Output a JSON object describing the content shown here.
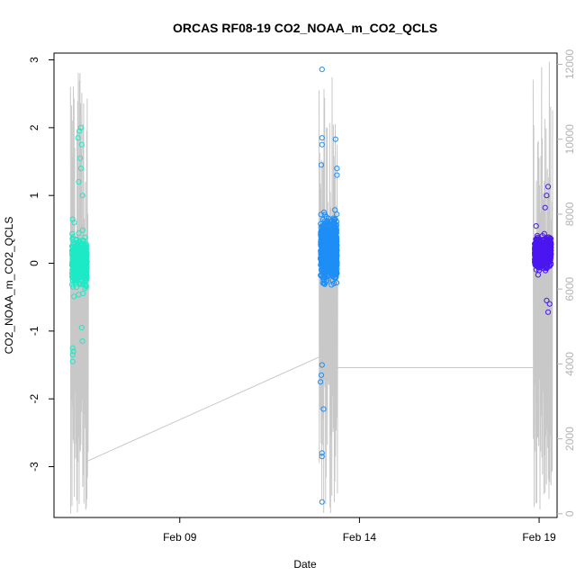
{
  "chart_data": {
    "type": "scatter",
    "title": "ORCAS RF08-19 CO2_NOAA_m_CO2_QCLS",
    "xlabel": "Date",
    "ylabel": "CO2_NOAA_m_CO2_QCLS",
    "x_axis": {
      "type": "date",
      "range": [
        "2016-02-05T12:00",
        "2016-02-19T12:00"
      ],
      "ticks": [
        {
          "value": "2016-02-09",
          "label": "Feb 09"
        },
        {
          "value": "2016-02-14",
          "label": "Feb 14"
        },
        {
          "value": "2016-02-19",
          "label": "Feb 19"
        }
      ]
    },
    "y_axis": {
      "range": [
        -3.75,
        3.1
      ],
      "ticks": [
        -3,
        -2,
        -1,
        0,
        1,
        2,
        3
      ]
    },
    "y2_axis": {
      "range": [
        -100,
        12300
      ],
      "ticks": [
        0,
        2000,
        4000,
        6000,
        8000,
        10000,
        12000
      ],
      "color": "#b3b3b3"
    },
    "series": [
      {
        "color": "#1de9c5",
        "x_range": [
          "2016-02-06T00:00",
          "2016-02-06T10:00"
        ],
        "center": 0.0,
        "spread": 0.3,
        "n": 420,
        "outliers": [
          {
            "x": "2016-02-06T06:00",
            "y": 2.0
          },
          {
            "x": "2016-02-06T05:00",
            "y": 1.95
          },
          {
            "x": "2016-02-06T04:00",
            "y": 1.85
          },
          {
            "x": "2016-02-06T06:30",
            "y": 1.75
          },
          {
            "x": "2016-02-06T05:30",
            "y": 1.55
          },
          {
            "x": "2016-02-06T06:00",
            "y": 1.4
          },
          {
            "x": "2016-02-06T04:30",
            "y": 1.2
          },
          {
            "x": "2016-02-06T07:00",
            "y": 1.0
          },
          {
            "x": "2016-02-06T00:30",
            "y": 0.65
          },
          {
            "x": "2016-02-06T01:30",
            "y": 0.6
          },
          {
            "x": "2016-02-06T00:30",
            "y": -1.25
          },
          {
            "x": "2016-02-06T01:00",
            "y": -1.3
          },
          {
            "x": "2016-02-06T00:30",
            "y": -1.35
          },
          {
            "x": "2016-02-06T00:30",
            "y": -1.45
          },
          {
            "x": "2016-02-06T07:00",
            "y": -1.15
          },
          {
            "x": "2016-02-06T06:30",
            "y": -0.95
          }
        ]
      },
      {
        "color": "#1e8ef5",
        "x_range": [
          "2016-02-12T22:00",
          "2016-02-13T09:00"
        ],
        "center": 0.2,
        "spread": 0.35,
        "n": 900,
        "outliers": [
          {
            "x": "2016-02-12T23:00",
            "y": 2.86
          },
          {
            "x": "2016-02-12T23:00",
            "y": 1.85
          },
          {
            "x": "2016-02-13T08:00",
            "y": 1.83
          },
          {
            "x": "2016-02-12T23:00",
            "y": 1.75
          },
          {
            "x": "2016-02-12T22:30",
            "y": 1.45
          },
          {
            "x": "2016-02-13T09:00",
            "y": 1.4
          },
          {
            "x": "2016-02-13T09:00",
            "y": 1.3
          },
          {
            "x": "2016-02-12T23:00",
            "y": -1.5
          },
          {
            "x": "2016-02-12T22:30",
            "y": -1.65
          },
          {
            "x": "2016-02-12T22:00",
            "y": -1.75
          },
          {
            "x": "2016-02-13T00:00",
            "y": -2.15
          },
          {
            "x": "2016-02-12T23:00",
            "y": -2.8
          },
          {
            "x": "2016-02-12T23:00",
            "y": -2.85
          },
          {
            "x": "2016-02-12T23:00",
            "y": -3.52
          }
        ]
      },
      {
        "color": "#4a16f0",
        "x_range": [
          "2016-02-18T21:00",
          "2016-02-19T08:00"
        ],
        "center": 0.15,
        "spread": 0.18,
        "n": 650,
        "outliers": [
          {
            "x": "2016-02-19T06:00",
            "y": 1.13
          },
          {
            "x": "2016-02-19T05:00",
            "y": 1.0
          },
          {
            "x": "2016-02-19T04:00",
            "y": 0.82
          },
          {
            "x": "2016-02-18T22:00",
            "y": 0.55
          },
          {
            "x": "2016-02-19T05:00",
            "y": -0.55
          },
          {
            "x": "2016-02-19T07:00",
            "y": -0.6
          },
          {
            "x": "2016-02-19T06:00",
            "y": -0.72
          }
        ]
      }
    ],
    "altitude_trace": {
      "color": "#c8c8c8",
      "axis": "y2",
      "connectors": [
        {
          "x": "2016-02-06T10:00",
          "y": 1400
        },
        {
          "x": "2016-02-12T22:00",
          "y": 4200
        },
        {
          "x": "2016-02-13T09:00",
          "y": 3900
        },
        {
          "x": "2016-02-18T21:00",
          "y": 3900
        }
      ],
      "flights": [
        {
          "start": "2016-02-05T23:00",
          "end": "2016-02-06T11:00",
          "max": 12000,
          "min": 0
        },
        {
          "start": "2016-02-12T21:00",
          "end": "2016-02-13T09:30",
          "max": 11900,
          "min": 0
        },
        {
          "start": "2016-02-18T20:00",
          "end": "2016-02-19T09:00",
          "max": 12200,
          "min": 0
        }
      ]
    }
  }
}
